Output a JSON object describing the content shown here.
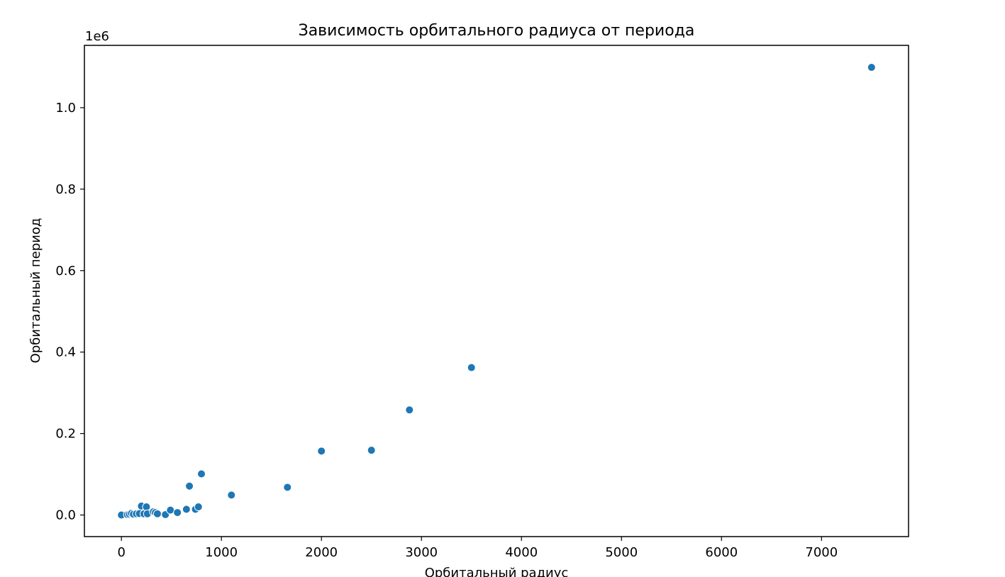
{
  "chart_data": {
    "type": "scatter",
    "title": "Зависимость орбитального радиуса от периода",
    "xlabel": "Орбитальный радиус",
    "ylabel": "Орбитальный период",
    "y_offset_text": "1e6",
    "xlim": [
      -370,
      7870
    ],
    "ylim": [
      -53000,
      1153000
    ],
    "x_ticks": [
      0,
      1000,
      2000,
      3000,
      4000,
      5000,
      6000,
      7000
    ],
    "y_ticks": [
      0,
      200000,
      400000,
      600000,
      800000,
      1000000
    ],
    "x_tick_labels": [
      "0",
      "1000",
      "2000",
      "3000",
      "4000",
      "5000",
      "6000",
      "7000"
    ],
    "y_tick_labels": [
      "0.0",
      "0.2",
      "0.4",
      "0.6",
      "0.8",
      "1.0"
    ],
    "grid": false,
    "marker_color": "#1f77b4",
    "points": [
      {
        "x": 0,
        "y": 0
      },
      {
        "x": 60,
        "y": 1000
      },
      {
        "x": 80,
        "y": 2000
      },
      {
        "x": 100,
        "y": 4000
      },
      {
        "x": 120,
        "y": 2000
      },
      {
        "x": 150,
        "y": 3000
      },
      {
        "x": 180,
        "y": 3500
      },
      {
        "x": 200,
        "y": 22000
      },
      {
        "x": 225,
        "y": 3000
      },
      {
        "x": 250,
        "y": 20000
      },
      {
        "x": 260,
        "y": 3000
      },
      {
        "x": 320,
        "y": 8000
      },
      {
        "x": 340,
        "y": 6000
      },
      {
        "x": 360,
        "y": 3000
      },
      {
        "x": 440,
        "y": 1000
      },
      {
        "x": 490,
        "y": 12000
      },
      {
        "x": 560,
        "y": 6000
      },
      {
        "x": 650,
        "y": 14000
      },
      {
        "x": 680,
        "y": 71000
      },
      {
        "x": 740,
        "y": 14000
      },
      {
        "x": 770,
        "y": 20000
      },
      {
        "x": 800,
        "y": 101000
      },
      {
        "x": 1100,
        "y": 49000
      },
      {
        "x": 1660,
        "y": 68000
      },
      {
        "x": 2000,
        "y": 157000
      },
      {
        "x": 2500,
        "y": 159000
      },
      {
        "x": 2880,
        "y": 258000
      },
      {
        "x": 3500,
        "y": 362000
      },
      {
        "x": 7500,
        "y": 1099000
      }
    ]
  }
}
